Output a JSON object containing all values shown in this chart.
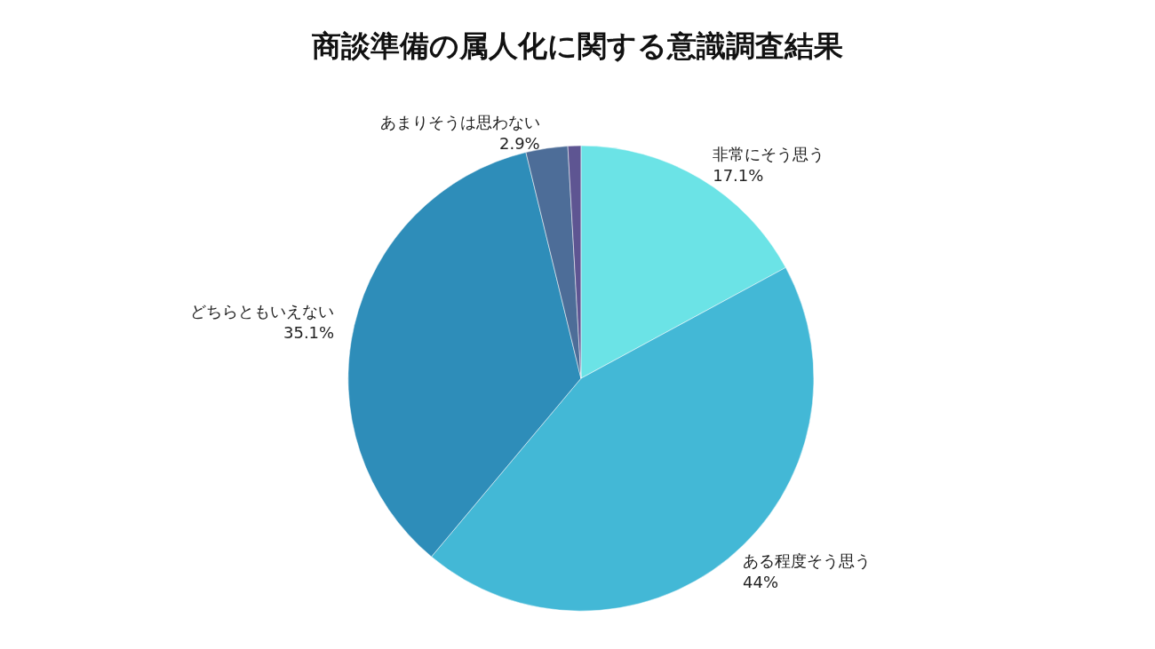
{
  "chart_data": {
    "type": "pie",
    "title": "商談準備の属人化に関する意識調査結果",
    "categories": [
      "非常にそう思う",
      "ある程度そう思う",
      "どちらともいえない",
      "あまりそうは思わない",
      null
    ],
    "values": [
      17.1,
      44,
      35.1,
      2.9,
      0.9
    ],
    "colors": [
      "#6be3e6",
      "#43b8d6",
      "#2e8db9",
      "#4d6d98",
      "#5e5592"
    ],
    "value_labels": [
      "17.1%",
      "44%",
      "35.1%",
      "2.9%",
      null
    ]
  }
}
